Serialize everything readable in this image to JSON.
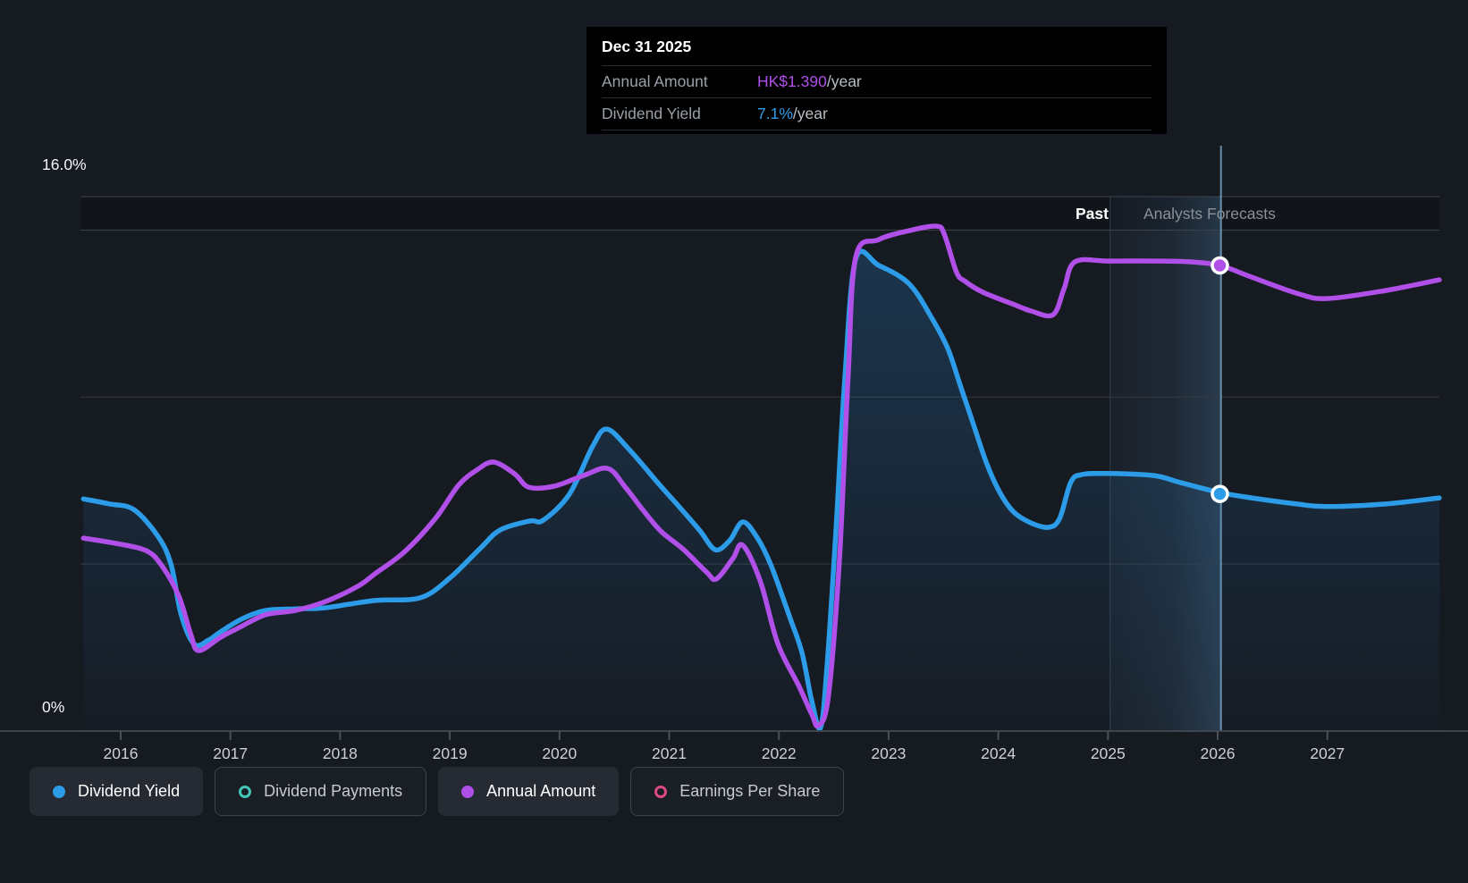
{
  "colors": {
    "background": "#161a21",
    "tooltip_background": "#000000",
    "gridline": "#343a41",
    "gridline_top": "#3d434b",
    "axis_line": "#3f454d",
    "cursor_line": "#86b4d6",
    "band_fill_left": "rgba(100,160,215,0.05)",
    "band_fill_right": "rgba(110,178,235,0.22)",
    "yield_blue": "#2d9ce8",
    "amount_purple": "#b150e8",
    "payments_teal": "#43c6b7",
    "eps_pink": "#dd4a80"
  },
  "tooltip": {
    "date": "Dec 31 2025",
    "rows": [
      {
        "label": "Annual Amount",
        "value": "HK$1.390",
        "suffix": "/year",
        "color": "#b150e8"
      },
      {
        "label": "Dividend Yield",
        "value": "7.1%",
        "suffix": "/year",
        "color": "#2d9ce8"
      }
    ]
  },
  "annotations": {
    "past_label": "Past",
    "forecast_label": "Analysts Forecasts"
  },
  "axis": {
    "y_top_label": "16.0%",
    "y_bottom_label": "0%",
    "years": [
      "2016",
      "2017",
      "2018",
      "2019",
      "2020",
      "2021",
      "2022",
      "2023",
      "2024",
      "2025",
      "2026",
      "2027"
    ]
  },
  "legend": [
    {
      "label": "Dividend Yield",
      "icon": "filled-dot",
      "color": "#2d9ce8",
      "active": true
    },
    {
      "label": "Dividend Payments",
      "icon": "ring",
      "color": "#43c6b7",
      "active": false
    },
    {
      "label": "Annual Amount",
      "icon": "filled-dot",
      "color": "#b150e8",
      "active": true
    },
    {
      "label": "Earnings Per Share",
      "icon": "ring",
      "color": "#dd4a80",
      "active": false
    }
  ],
  "chart_data": {
    "type": "line",
    "title": "",
    "x_axis": {
      "ticks": [
        2016,
        2017,
        2018,
        2019,
        2020,
        2021,
        2022,
        2023,
        2024,
        2025,
        2026,
        2027
      ],
      "range": [
        2015.6,
        2028.1
      ]
    },
    "y_axis_yield": {
      "unit": "%",
      "min": 0,
      "max": 16.5,
      "gridlines_pct": [
        16.0,
        15.0,
        10.0,
        5.0
      ]
    },
    "y_axis_amount": {
      "unit": "HK$/year",
      "min": 0,
      "max": 1.6
    },
    "past_band": {
      "from": 2025.02,
      "to": 2026.03
    },
    "cursor_year": 2026.03,
    "legend_position": "bottom",
    "series": [
      {
        "name": "Dividend Yield",
        "color": "#2d9ce8",
        "axis": "yield",
        "area": true,
        "points": [
          [
            2015.66,
            6.95
          ],
          [
            2015.9,
            6.8
          ],
          [
            2016.12,
            6.63
          ],
          [
            2016.34,
            5.83
          ],
          [
            2016.46,
            4.98
          ],
          [
            2016.55,
            3.5
          ],
          [
            2016.67,
            2.6
          ],
          [
            2016.8,
            2.72
          ],
          [
            2016.91,
            2.97
          ],
          [
            2017.1,
            3.35
          ],
          [
            2017.32,
            3.61
          ],
          [
            2017.6,
            3.66
          ],
          [
            2017.86,
            3.69
          ],
          [
            2018.32,
            3.91
          ],
          [
            2018.73,
            3.99
          ],
          [
            2019.0,
            4.58
          ],
          [
            2019.28,
            5.48
          ],
          [
            2019.46,
            6.02
          ],
          [
            2019.73,
            6.29
          ],
          [
            2019.85,
            6.31
          ],
          [
            2020.09,
            7.09
          ],
          [
            2020.3,
            8.51
          ],
          [
            2020.43,
            9.04
          ],
          [
            2020.63,
            8.45
          ],
          [
            2020.91,
            7.38
          ],
          [
            2021.09,
            6.72
          ],
          [
            2021.28,
            6.0
          ],
          [
            2021.42,
            5.43
          ],
          [
            2021.55,
            5.7
          ],
          [
            2021.67,
            6.26
          ],
          [
            2021.8,
            5.8
          ],
          [
            2021.93,
            4.95
          ],
          [
            2022.1,
            3.4
          ],
          [
            2022.21,
            2.35
          ],
          [
            2022.3,
            0.9
          ],
          [
            2022.38,
            0.1
          ],
          [
            2022.44,
            2.0
          ],
          [
            2022.52,
            6.0
          ],
          [
            2022.6,
            10.5
          ],
          [
            2022.7,
            14.13
          ],
          [
            2022.91,
            13.94
          ],
          [
            2023.19,
            13.38
          ],
          [
            2023.4,
            12.33
          ],
          [
            2023.54,
            11.45
          ],
          [
            2023.65,
            10.38
          ],
          [
            2023.76,
            9.31
          ],
          [
            2023.89,
            8.05
          ],
          [
            2024.01,
            7.17
          ],
          [
            2024.14,
            6.56
          ],
          [
            2024.3,
            6.23
          ],
          [
            2024.46,
            6.1
          ],
          [
            2024.56,
            6.37
          ],
          [
            2024.66,
            7.44
          ],
          [
            2024.76,
            7.68
          ],
          [
            2025.01,
            7.71
          ],
          [
            2025.42,
            7.65
          ],
          [
            2025.66,
            7.44
          ],
          [
            2026.02,
            7.14
          ],
          [
            2026.31,
            6.98
          ],
          [
            2026.72,
            6.8
          ],
          [
            2026.99,
            6.72
          ],
          [
            2027.53,
            6.8
          ],
          [
            2028.02,
            6.98
          ]
        ]
      },
      {
        "name": "Annual Amount",
        "color": "#b150e8",
        "axis": "amount",
        "area": false,
        "points": [
          [
            2015.66,
            0.576
          ],
          [
            2015.96,
            0.56
          ],
          [
            2016.23,
            0.539
          ],
          [
            2016.37,
            0.496
          ],
          [
            2016.53,
            0.403
          ],
          [
            2016.64,
            0.288
          ],
          [
            2016.71,
            0.24
          ],
          [
            2016.91,
            0.28
          ],
          [
            2017.08,
            0.309
          ],
          [
            2017.32,
            0.347
          ],
          [
            2017.59,
            0.36
          ],
          [
            2017.87,
            0.387
          ],
          [
            2018.16,
            0.432
          ],
          [
            2018.32,
            0.47
          ],
          [
            2018.59,
            0.536
          ],
          [
            2018.87,
            0.635
          ],
          [
            2019.08,
            0.734
          ],
          [
            2019.25,
            0.78
          ],
          [
            2019.4,
            0.803
          ],
          [
            2019.59,
            0.768
          ],
          [
            2019.72,
            0.728
          ],
          [
            2019.95,
            0.731
          ],
          [
            2020.22,
            0.763
          ],
          [
            2020.44,
            0.784
          ],
          [
            2020.6,
            0.728
          ],
          [
            2020.77,
            0.656
          ],
          [
            2020.93,
            0.595
          ],
          [
            2021.13,
            0.542
          ],
          [
            2021.34,
            0.475
          ],
          [
            2021.43,
            0.454
          ],
          [
            2021.58,
            0.515
          ],
          [
            2021.67,
            0.555
          ],
          [
            2021.83,
            0.448
          ],
          [
            2021.99,
            0.261
          ],
          [
            2022.18,
            0.136
          ],
          [
            2022.3,
            0.05
          ],
          [
            2022.36,
            0.016
          ],
          [
            2022.45,
            0.1
          ],
          [
            2022.55,
            0.5
          ],
          [
            2022.63,
            1.05
          ],
          [
            2022.7,
            1.414
          ],
          [
            2022.91,
            1.467
          ],
          [
            2023.19,
            1.494
          ],
          [
            2023.44,
            1.507
          ],
          [
            2023.51,
            1.481
          ],
          [
            2023.62,
            1.369
          ],
          [
            2023.7,
            1.342
          ],
          [
            2023.86,
            1.31
          ],
          [
            2024.13,
            1.275
          ],
          [
            2024.3,
            1.254
          ],
          [
            2024.5,
            1.243
          ],
          [
            2024.6,
            1.321
          ],
          [
            2024.7,
            1.401
          ],
          [
            2025.01,
            1.403
          ],
          [
            2025.5,
            1.403
          ],
          [
            2025.74,
            1.401
          ],
          [
            2026.02,
            1.39
          ],
          [
            2026.31,
            1.355
          ],
          [
            2026.72,
            1.307
          ],
          [
            2026.99,
            1.291
          ],
          [
            2027.53,
            1.315
          ],
          [
            2028.02,
            1.347
          ]
        ]
      }
    ],
    "markers": [
      {
        "series": "Annual Amount",
        "x": 2026.02,
        "value": 1.39,
        "display": "HK$1.390/year"
      },
      {
        "series": "Dividend Yield",
        "x": 2026.02,
        "value": 7.1,
        "display": "7.1%/year"
      }
    ]
  }
}
